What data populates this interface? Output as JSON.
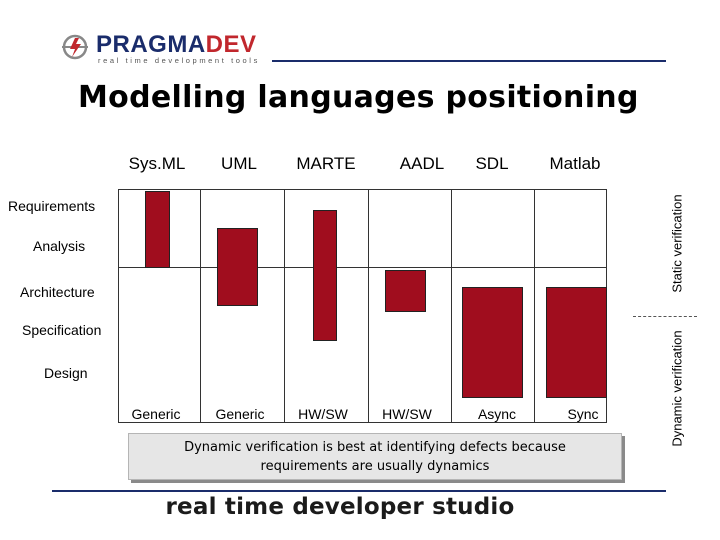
{
  "logo": {
    "name_part1": "PRAGMA",
    "name_part2": "DEV",
    "tagline": "real time development tools",
    "colors": {
      "navy": "#1a2c6b",
      "red": "#c1272d"
    }
  },
  "title": "Modelling languages positioning",
  "languages": [
    "Sys.ML",
    "UML",
    "MARTE",
    "AADL",
    "SDL",
    "Matlab"
  ],
  "phases": [
    "Requirements",
    "Analysis",
    "Architecture",
    "Specification",
    "Design"
  ],
  "kinds": [
    "Generic",
    "Generic",
    "HW/SW",
    "HW/SW",
    "Async",
    "Sync"
  ],
  "note": "Dynamic verification is best at identifying defects because requirements are usually dynamics",
  "side_labels": {
    "static": "Static verification",
    "dynamic": "Dynamic verification"
  },
  "footer": "real time developer studio",
  "colors": {
    "bar": "#a00d1e",
    "note_background": "#e6e6e6",
    "rule": "#1a2c6b"
  }
}
